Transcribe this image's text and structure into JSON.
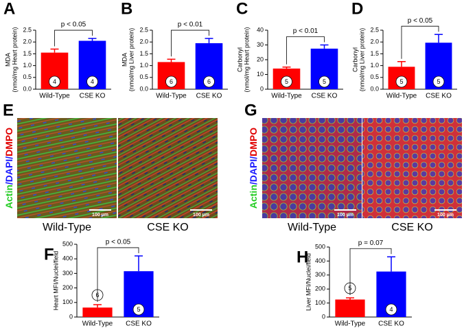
{
  "chart_data": [
    {
      "type": "bar",
      "panel": "A",
      "ylabel": [
        "MDA",
        "(nmol/mg Heart protein)"
      ],
      "categories": [
        "Wild-Type",
        "CSE KO"
      ],
      "values": [
        1.55,
        2.05
      ],
      "errors": [
        0.15,
        0.1
      ],
      "n": [
        4,
        4
      ],
      "colors": [
        "#ff0000",
        "#0000ff"
      ],
      "annotation": "p < 0.05",
      "ylim": [
        0,
        2.5
      ],
      "yticks": [
        {
          "value": 0,
          "label": "0.0"
        },
        {
          "value": 0.5,
          "label": "0.5"
        },
        {
          "value": 1,
          "label": "1.0"
        },
        {
          "value": 1.5,
          "label": "1.5"
        },
        {
          "value": 2,
          "label": "2.0"
        },
        {
          "value": 2.5,
          "label": "2.5"
        }
      ]
    },
    {
      "type": "bar",
      "panel": "B",
      "ylabel": [
        "MDA",
        "(nmol/mg Liver protein)"
      ],
      "categories": [
        "Wild-Type",
        "CSE KO"
      ],
      "values": [
        1.15,
        1.95
      ],
      "errors": [
        0.12,
        0.2
      ],
      "n": [
        6,
        6
      ],
      "colors": [
        "#ff0000",
        "#0000ff"
      ],
      "annotation": "p < 0.01",
      "ylim": [
        0,
        2.5
      ],
      "yticks": [
        {
          "value": 0,
          "label": "0.0"
        },
        {
          "value": 0.5,
          "label": "0.5"
        },
        {
          "value": 1,
          "label": "1.0"
        },
        {
          "value": 1.5,
          "label": "1.5"
        },
        {
          "value": 2,
          "label": "2.0"
        },
        {
          "value": 2.5,
          "label": "2.5"
        }
      ]
    },
    {
      "type": "bar",
      "panel": "C",
      "ylabel": [
        "Carbonyl",
        "(nmol/mg Heart protein)"
      ],
      "categories": [
        "Wild-Type",
        "CSE KO"
      ],
      "values": [
        14,
        27.5
      ],
      "errors": [
        1,
        2.5
      ],
      "n": [
        5,
        5
      ],
      "colors": [
        "#ff0000",
        "#0000ff"
      ],
      "annotation": "p < 0.01",
      "ylim": [
        0,
        40
      ],
      "yticks": [
        0,
        10,
        20,
        30,
        40
      ]
    },
    {
      "type": "bar",
      "panel": "D",
      "ylabel": [
        "Carbonyl",
        "(nmol/mg Liver protein)"
      ],
      "categories": [
        "Wild-Type",
        "CSE KO"
      ],
      "values": [
        0.95,
        1.97
      ],
      "errors": [
        0.22,
        0.35
      ],
      "n": [
        5,
        5
      ],
      "colors": [
        "#ff0000",
        "#0000ff"
      ],
      "annotation": "p < 0.05",
      "ylim": [
        0,
        2.5
      ],
      "yticks": [
        {
          "value": 0,
          "label": "0.0"
        },
        {
          "value": 0.5,
          "label": "0.5"
        },
        {
          "value": 1,
          "label": "1.0"
        },
        {
          "value": 1.5,
          "label": "1.5"
        },
        {
          "value": 2,
          "label": "2.0"
        },
        {
          "value": 2.5,
          "label": "2.5"
        }
      ]
    },
    {
      "type": "bar",
      "panel": "F",
      "ylabel": [
        "Heart MFI/Nuclei/field"
      ],
      "categories": [
        "Wild-Type",
        "CSE KO"
      ],
      "values": [
        65,
        315
      ],
      "errors": [
        20,
        105
      ],
      "n": [
        6,
        5
      ],
      "colors": [
        "#ff0000",
        "#0000ff"
      ],
      "annotation": "p < 0.05",
      "ylim": [
        0,
        500
      ],
      "yticks": [
        0,
        100,
        200,
        300,
        400,
        500
      ]
    },
    {
      "type": "bar",
      "panel": "H",
      "ylabel": [
        "Liver MFI/Nuclei/field"
      ],
      "categories": [
        "Wild-Type",
        "CSE KO"
      ],
      "values": [
        125,
        325
      ],
      "errors": [
        12,
        105
      ],
      "n": [
        5,
        4
      ],
      "colors": [
        "#ff0000",
        "#0000ff"
      ],
      "annotation": "p = 0.07",
      "ylim": [
        0,
        500
      ],
      "yticks": [
        0,
        100,
        200,
        300,
        400,
        500
      ]
    }
  ],
  "image_panels": [
    {
      "letter": "E",
      "stain_label": [
        {
          "text": "Actin",
          "color": "#22cc22"
        },
        {
          "text": "/DAPI/",
          "color": "#1a1aff"
        },
        {
          "text": "DMPO",
          "color": "#e00000"
        }
      ],
      "images": [
        {
          "label": "Wild-Type",
          "scale_bar": "100 µm"
        },
        {
          "label": "CSE KO",
          "scale_bar": "100 µm"
        }
      ]
    },
    {
      "letter": "G",
      "stain_label": [
        {
          "text": "Actin",
          "color": "#22cc22"
        },
        {
          "text": "/DAPI/",
          "color": "#1a1aff"
        },
        {
          "text": "DMPO",
          "color": "#e00000"
        }
      ],
      "images": [
        {
          "label": "Wild-Type",
          "scale_bar": "100 µm"
        },
        {
          "label": "CSE KO",
          "scale_bar": "100 µm"
        }
      ]
    }
  ]
}
